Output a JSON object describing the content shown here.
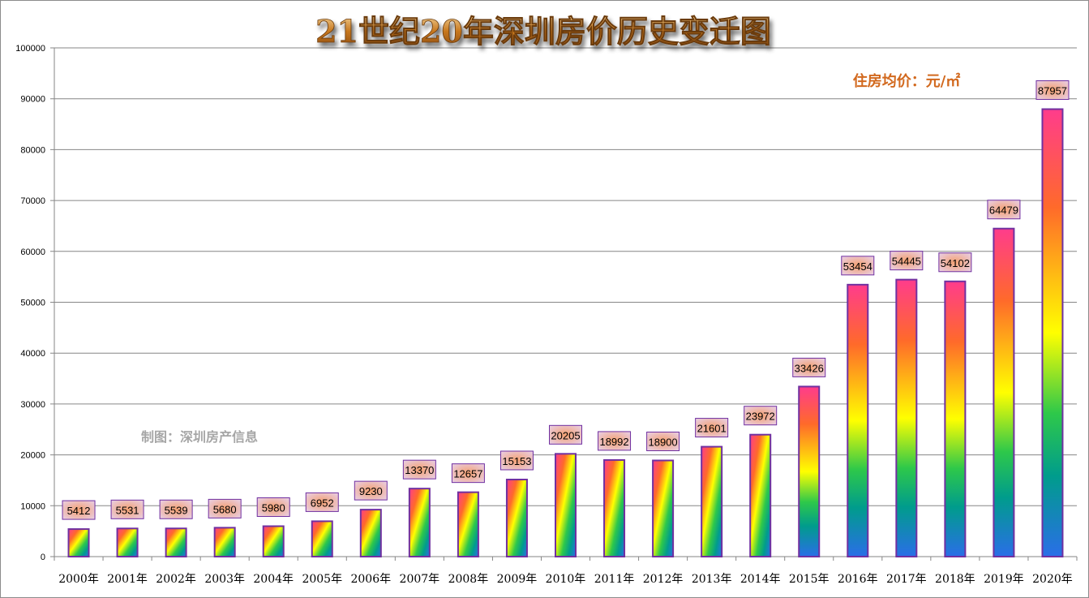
{
  "chart_data": {
    "type": "bar",
    "title": "21世纪20年深圳房价历史变迁图",
    "unit_note": "住房均价：元/㎡",
    "credit": "制图：深圳房产信息",
    "categories": [
      "2000年",
      "2001年",
      "2002年",
      "2003年",
      "2004年",
      "2005年",
      "2006年",
      "2007年",
      "2008年",
      "2009年",
      "2010年",
      "2011年",
      "2012年",
      "2013年",
      "2014年",
      "2015年",
      "2016年",
      "2017年",
      "2018年",
      "2019年",
      "2020年"
    ],
    "values": [
      5412,
      5531,
      5539,
      5680,
      5980,
      6952,
      9230,
      13370,
      12657,
      15153,
      20205,
      18992,
      18900,
      21601,
      23972,
      33426,
      53454,
      54445,
      54102,
      64479,
      87957
    ],
    "ylim": [
      0,
      100000
    ],
    "yticks": [
      0,
      10000,
      20000,
      30000,
      40000,
      50000,
      60000,
      70000,
      80000,
      90000,
      100000
    ],
    "grid": true,
    "data_labels": true,
    "colors": {
      "bar_gradient": [
        "#ff3c8c",
        "#ff6a2a",
        "#ffff00",
        "#2ec84a",
        "#009c8c",
        "#2a6ee8"
      ],
      "bar_border": "#7030a0",
      "label_fill": "#f0b088",
      "label_border": "#7030a0",
      "unit_note": "#d2691e",
      "credit": "#a6a6a6",
      "grid": "#868686"
    }
  }
}
